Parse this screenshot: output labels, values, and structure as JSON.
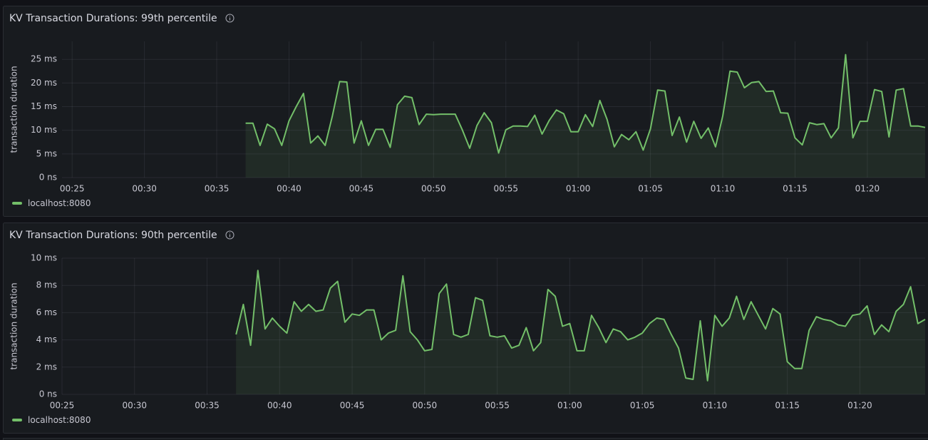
{
  "chart_data": [
    {
      "type": "line",
      "title": "KV Transaction Durations: 99th percentile",
      "y_label": "transaction duration",
      "x": [
        37,
        37.5,
        38,
        38.5,
        39,
        39.5,
        40,
        40.5,
        41,
        41.5,
        42,
        42.5,
        43,
        43.5,
        44,
        44.5,
        45,
        45.5,
        46,
        46.5,
        47,
        47.5,
        48,
        48.5,
        49,
        49.5,
        50,
        50.5,
        51,
        51.5,
        52,
        52.5,
        53,
        53.5,
        54,
        54.5,
        55,
        55.5,
        56,
        56.5,
        57,
        57.5,
        58,
        58.5,
        59,
        59.5,
        60,
        60.5,
        61,
        61.5,
        62,
        62.5,
        63,
        63.5,
        64,
        64.5,
        65,
        65.5,
        66,
        66.5,
        67,
        67.5,
        68,
        68.5,
        69,
        69.5,
        70,
        70.5,
        71,
        71.5,
        72,
        72.5,
        73,
        73.5,
        74,
        74.5,
        75,
        75.5,
        76,
        76.5,
        77,
        77.5,
        78,
        78.5,
        79,
        79.5,
        80,
        80.5,
        81,
        81.5,
        82,
        82.5,
        83,
        83.5,
        84
      ],
      "series": [
        {
          "name": "localhost:8080",
          "color": "#73bf69",
          "values": [
            11.5,
            11.5,
            6.8,
            11.3,
            10.3,
            6.8,
            12,
            15,
            17.8,
            7.3,
            8.8,
            6.8,
            13,
            20.3,
            20.2,
            7.3,
            12,
            6.8,
            10.2,
            10.2,
            6.4,
            15.4,
            17.2,
            16.9,
            11.2,
            13.4,
            13.3,
            13.4,
            13.4,
            13.4,
            10,
            6.2,
            11,
            13.7,
            11.6,
            5.2,
            10.1,
            10.9,
            10.9,
            10.8,
            13.2,
            9.2,
            12.1,
            14.3,
            13.5,
            9.7,
            9.7,
            13.3,
            10.8,
            16.3,
            12.3,
            6.5,
            9.1,
            8.0,
            9.7,
            5.8,
            10.3,
            18.5,
            18.3,
            8.9,
            12.8,
            7.5,
            11.9,
            8.3,
            10.5,
            6.5,
            13,
            22.5,
            22.3,
            19,
            20.1,
            20.3,
            18.2,
            18.3,
            13.7,
            13.6,
            8.4,
            6.9,
            11.6,
            11.2,
            11.4,
            8.4,
            10.5,
            26,
            8.4,
            11.9,
            11.9,
            18.6,
            18.2,
            8.6,
            18.5,
            18.8,
            10.9,
            10.9,
            10.6
          ]
        }
      ],
      "xlim": [
        24.3,
        84
      ],
      "xticks": [
        {
          "value": 25,
          "label": "00:25"
        },
        {
          "value": 30,
          "label": "00:30"
        },
        {
          "value": 35,
          "label": "00:35"
        },
        {
          "value": 40,
          "label": "00:40"
        },
        {
          "value": 45,
          "label": "00:45"
        },
        {
          "value": 50,
          "label": "00:50"
        },
        {
          "value": 55,
          "label": "00:55"
        },
        {
          "value": 60,
          "label": "01:00"
        },
        {
          "value": 65,
          "label": "01:05"
        },
        {
          "value": 70,
          "label": "01:10"
        },
        {
          "value": 75,
          "label": "01:15"
        },
        {
          "value": 80,
          "label": "01:20"
        }
      ],
      "ylim": [
        0,
        28.8
      ],
      "yticks": [
        {
          "value": 0,
          "label": "0 ns"
        },
        {
          "value": 5,
          "label": "5 ms"
        },
        {
          "value": 10,
          "label": "10 ms"
        },
        {
          "value": 15,
          "label": "15 ms"
        },
        {
          "value": 20,
          "label": "20 ms"
        },
        {
          "value": 25,
          "label": "25 ms"
        }
      ],
      "grid": true,
      "legend": "bottom-left"
    },
    {
      "type": "line",
      "title": "KV Transaction Durations: 90th percentile",
      "y_label": "transaction duration",
      "x": [
        37,
        37.5,
        38,
        38.5,
        39,
        39.5,
        40,
        40.5,
        41,
        41.5,
        42,
        42.5,
        43,
        43.5,
        44,
        44.5,
        45,
        45.5,
        46,
        46.5,
        47,
        47.5,
        48,
        48.5,
        49,
        49.5,
        50,
        50.5,
        51,
        51.5,
        52,
        52.5,
        53,
        53.5,
        54,
        54.5,
        55,
        55.5,
        56,
        56.5,
        57,
        57.5,
        58,
        58.5,
        59,
        59.5,
        60,
        60.5,
        61,
        61.5,
        62,
        62.5,
        63,
        63.5,
        64,
        64.5,
        65,
        65.5,
        66,
        66.5,
        67,
        67.5,
        68,
        68.5,
        69,
        69.5,
        70,
        70.5,
        71,
        71.5,
        72,
        72.5,
        73,
        73.5,
        74,
        74.5,
        75,
        75.5,
        76,
        76.5,
        77,
        77.5,
        78,
        78.5,
        79,
        79.5,
        80,
        80.5,
        81,
        81.5,
        82,
        82.5,
        83,
        83.5,
        84,
        84.5
      ],
      "series": [
        {
          "name": "localhost:8080",
          "color": "#73bf69",
          "values": [
            4.4,
            6.6,
            3.6,
            9.1,
            4.8,
            5.6,
            5,
            4.5,
            6.8,
            6.1,
            6.6,
            6.1,
            6.2,
            7.8,
            8.3,
            5.3,
            5.9,
            5.8,
            6.2,
            6.2,
            4.0,
            4.5,
            4.7,
            8.7,
            4.6,
            4.0,
            3.2,
            3.3,
            7.4,
            8.1,
            4.4,
            4.2,
            4.4,
            7.1,
            6.9,
            4.3,
            4.2,
            4.3,
            3.4,
            3.6,
            4.9,
            3.2,
            3.8,
            7.7,
            7.2,
            5,
            5.2,
            3.2,
            3.2,
            5.8,
            4.9,
            3.8,
            4.8,
            4.6,
            4.0,
            4.2,
            4.5,
            5.2,
            5.6,
            5.5,
            4.4,
            3.4,
            1.2,
            1.1,
            5.4,
            1.0,
            5.8,
            5.0,
            5.6,
            7.2,
            5.5,
            6.8,
            5.8,
            4.8,
            6.3,
            5.9,
            2.4,
            1.9,
            1.9,
            4.7,
            5.7,
            5.5,
            5.4,
            5.1,
            5.0,
            5.8,
            5.9,
            6.5,
            4.4,
            5.1,
            4.6,
            6.1,
            6.6,
            7.9,
            5.2,
            5.5
          ]
        }
      ],
      "xlim": [
        25,
        84.5
      ],
      "xticks": [
        {
          "value": 25,
          "label": "00:25"
        },
        {
          "value": 30,
          "label": "00:30"
        },
        {
          "value": 35,
          "label": "00:35"
        },
        {
          "value": 40,
          "label": "00:40"
        },
        {
          "value": 45,
          "label": "00:45"
        },
        {
          "value": 50,
          "label": "00:50"
        },
        {
          "value": 55,
          "label": "00:55"
        },
        {
          "value": 60,
          "label": "01:00"
        },
        {
          "value": 65,
          "label": "01:05"
        },
        {
          "value": 70,
          "label": "01:10"
        },
        {
          "value": 75,
          "label": "01:15"
        },
        {
          "value": 80,
          "label": "01:20"
        }
      ],
      "ylim": [
        0,
        10
      ],
      "yticks": [
        {
          "value": 0,
          "label": "0 ns"
        },
        {
          "value": 2,
          "label": "2 ms"
        },
        {
          "value": 4,
          "label": "4 ms"
        },
        {
          "value": 6,
          "label": "6 ms"
        },
        {
          "value": 8,
          "label": "8 ms"
        },
        {
          "value": 10,
          "label": "10 ms"
        }
      ],
      "grid": true,
      "legend": "bottom-left"
    }
  ]
}
